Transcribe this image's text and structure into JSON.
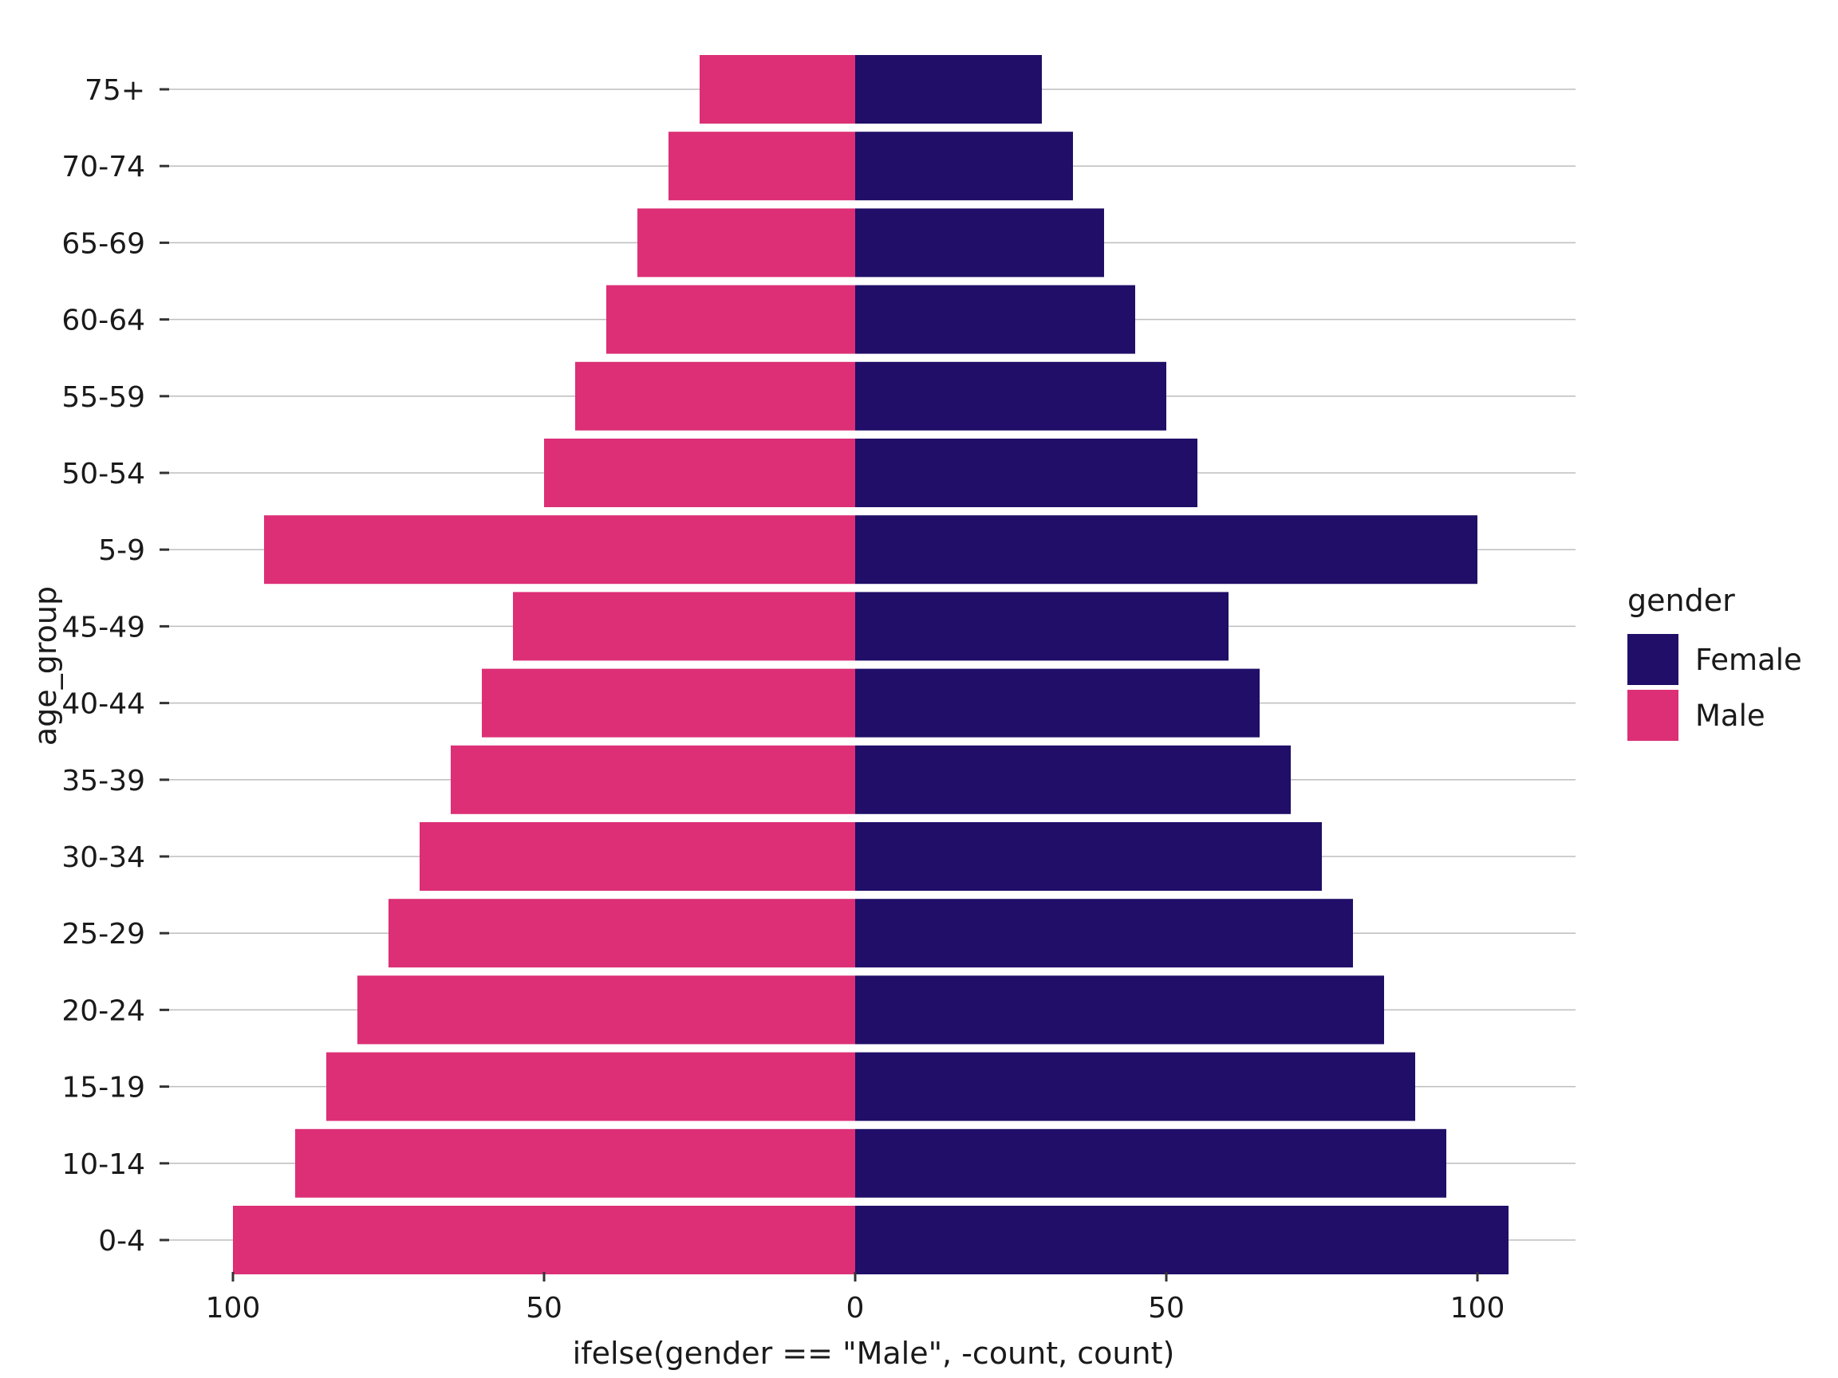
{
  "chart_data": {
    "type": "bar",
    "orientation": "horizontal",
    "title": "",
    "xlabel": "ifelse(gender == \"Male\", -count, count)",
    "ylabel": "age_group",
    "x_ticks": [
      -100,
      -50,
      0,
      50,
      100
    ],
    "x_tick_labels": [
      "100",
      "50",
      "0",
      "50",
      "100"
    ],
    "xlim": [
      -100,
      105
    ],
    "categories": [
      "0-4",
      "10-14",
      "15-19",
      "20-24",
      "25-29",
      "30-34",
      "35-39",
      "40-44",
      "45-49",
      "5-9",
      "50-54",
      "55-59",
      "60-64",
      "65-69",
      "70-74",
      "75+"
    ],
    "series": [
      {
        "name": "Female",
        "color": "#200e68",
        "values": [
          105,
          95,
          90,
          85,
          80,
          75,
          70,
          65,
          60,
          100,
          55,
          50,
          45,
          40,
          35,
          30
        ]
      },
      {
        "name": "Male",
        "color": "#dc2f76",
        "values": [
          -100,
          -90,
          -85,
          -80,
          -75,
          -70,
          -65,
          -60,
          -55,
          -95,
          -50,
          -45,
          -40,
          -35,
          -30,
          -25
        ]
      }
    ],
    "grid": {
      "horizontal": true,
      "vertical": false
    },
    "legend": {
      "title": "gender",
      "position": "right",
      "entries": [
        "Female",
        "Male"
      ]
    }
  }
}
